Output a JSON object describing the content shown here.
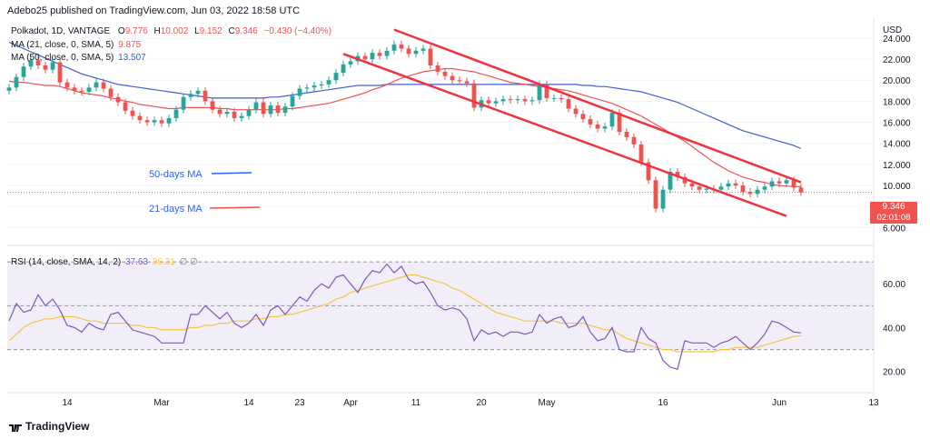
{
  "header": {
    "text": "Adebo25 published on TradingView.com, Jun 03, 2022 18:58 UTC"
  },
  "legend": {
    "symbol": "Polkadot, 1D, VANTAGE",
    "o_label": "O",
    "o": "9.776",
    "h_label": "H",
    "h": "10.002",
    "l_label": "L",
    "l": "9.152",
    "c_label": "C",
    "c": "9.346",
    "change": "−0.430 (−4.40%)",
    "ma21_label": "MA (21, close, 0, SMA, 5)",
    "ma21_value": "9.875",
    "ma50_label": "MA (50, close, 0, SMA, 5)",
    "ma50_value": "13.507",
    "rsi_label": "RSI (14, close, SMA, 14, 2)",
    "rsi_value": "37.63",
    "rsi_ma_value": "36.31",
    "rsi_extra": "∅ ∅"
  },
  "annotations": {
    "ma50": "50-days MA",
    "ma21": "21-days MA"
  },
  "price_tag": {
    "price": "9.346",
    "countdown": "02:01:08"
  },
  "footer": {
    "brand": "TradingView"
  },
  "colors": {
    "up": "#26a69a",
    "down": "#ef5350",
    "ma21": "#ef5350",
    "ma50": "#3c5fd6",
    "rsi": "#7e57c2",
    "rsi_ma": "#f5c542",
    "channel": "#ef3340"
  },
  "chart_data": [
    {
      "type": "candlestick",
      "title": "Polkadot, 1D, VANTAGE",
      "currency": "USD",
      "y_ticks": [
        6,
        8,
        10,
        12,
        14,
        16,
        18,
        20,
        22,
        24
      ],
      "y_tick_labels": [
        "6.000",
        "8.000",
        "10.000",
        "12.000",
        "14.000",
        "16.000",
        "18.000",
        "20.000",
        "22.000",
        "24.000"
      ],
      "ylim": [
        5.0,
        25.2
      ],
      "x_tick_labels": [
        "14",
        "Mar",
        "14",
        "23",
        "Apr",
        "11",
        "20",
        "May",
        "16",
        "Jun",
        "13"
      ],
      "closes": [
        19.3,
        20.3,
        21.3,
        21.9,
        21.4,
        21.0,
        21.7,
        19.8,
        19.3,
        19.0,
        18.9,
        19.3,
        19.8,
        19.2,
        18.4,
        17.9,
        17.1,
        16.6,
        16.2,
        16.0,
        16.2,
        15.9,
        16.4,
        17.2,
        18.4,
        18.7,
        19.0,
        18.0,
        17.2,
        16.8,
        17.0,
        16.4,
        16.6,
        17.2,
        17.9,
        16.8,
        17.6,
        16.9,
        17.5,
        18.5,
        19.2,
        19.3,
        19.5,
        19.6,
        20.0,
        20.7,
        21.5,
        21.8,
        22.3,
        22.0,
        22.6,
        22.3,
        22.8,
        23.4,
        23.0,
        22.5,
        22.8,
        23.0,
        21.4,
        20.8,
        20.4,
        20.0,
        19.9,
        19.7,
        17.4,
        18.1,
        17.8,
        18.0,
        18.2,
        18.1,
        18.2,
        18.0,
        18.1,
        19.6,
        18.3,
        18.3,
        18.2,
        17.3,
        16.8,
        16.3,
        15.8,
        15.4,
        15.6,
        16.9,
        15.1,
        14.6,
        13.9,
        12.2,
        10.5,
        7.8,
        9.6,
        11.3,
        10.8,
        10.2,
        9.9,
        9.6,
        9.7,
        9.6,
        9.9,
        10.2,
        10.0,
        9.4,
        9.2,
        9.6,
        9.9,
        10.4,
        10.2,
        10.5,
        9.8,
        9.346
      ],
      "ma21": [
        19.9,
        19.8,
        19.8,
        19.7,
        19.6,
        19.5,
        19.5,
        19.4,
        19.2,
        19.0,
        18.8,
        18.7,
        18.6,
        18.5,
        18.3,
        18.2,
        18.0,
        17.9,
        17.7,
        17.6,
        17.5,
        17.4,
        17.3,
        17.3,
        17.4,
        17.4,
        17.4,
        17.4,
        17.4,
        17.3,
        17.3,
        17.2,
        17.2,
        17.2,
        17.2,
        17.2,
        17.2,
        17.2,
        17.3,
        17.3,
        17.4,
        17.5,
        17.6,
        17.7,
        17.8,
        18.0,
        18.2,
        18.4,
        18.6,
        18.8,
        19.1,
        19.3,
        19.6,
        19.9,
        20.2,
        20.4,
        20.6,
        20.8,
        20.9,
        21.0,
        21.1,
        21.1,
        21.0,
        20.9,
        20.8,
        20.6,
        20.4,
        20.2,
        20.0,
        19.8,
        19.7,
        19.6,
        19.5,
        19.4,
        19.3,
        19.2,
        19.1,
        19.0,
        18.8,
        18.6,
        18.4,
        18.2,
        18.0,
        17.8,
        17.5,
        17.2,
        16.9,
        16.6,
        16.2,
        15.8,
        15.4,
        15.0,
        14.6,
        14.2,
        13.7,
        13.2,
        12.7,
        12.2,
        11.8,
        11.4,
        11.1,
        10.8,
        10.6,
        10.4,
        10.3,
        10.1,
        10.0,
        9.95,
        9.9,
        9.875
      ],
      "ma50": [
        23.6,
        23.3,
        23.0,
        22.7,
        22.4,
        22.1,
        21.8,
        21.5,
        21.2,
        20.9,
        20.6,
        20.4,
        20.2,
        20.0,
        19.8,
        19.6,
        19.5,
        19.4,
        19.3,
        19.2,
        19.1,
        19.0,
        18.9,
        18.8,
        18.7,
        18.6,
        18.5,
        18.4,
        18.3,
        18.3,
        18.3,
        18.3,
        18.3,
        18.3,
        18.3,
        18.3,
        18.4,
        18.4,
        18.5,
        18.6,
        18.7,
        18.8,
        18.9,
        19.0,
        19.1,
        19.2,
        19.3,
        19.4,
        19.5,
        19.5,
        19.5,
        19.5,
        19.6,
        19.6,
        19.6,
        19.6,
        19.6,
        19.6,
        19.6,
        19.6,
        19.6,
        19.6,
        19.6,
        19.6,
        19.6,
        19.6,
        19.6,
        19.6,
        19.6,
        19.6,
        19.6,
        19.6,
        19.6,
        19.6,
        19.6,
        19.6,
        19.6,
        19.6,
        19.6,
        19.5,
        19.5,
        19.4,
        19.4,
        19.3,
        19.2,
        19.1,
        19.0,
        18.9,
        18.7,
        18.5,
        18.3,
        18.1,
        17.9,
        17.6,
        17.3,
        17.0,
        16.7,
        16.4,
        16.1,
        15.8,
        15.5,
        15.2,
        15.0,
        14.8,
        14.6,
        14.4,
        14.2,
        14.0,
        13.8,
        13.507
      ],
      "channel_upper": {
        "from": [
          53,
          24.8
        ],
        "to": [
          109,
          10.3
        ]
      },
      "channel_lower": {
        "from": [
          46,
          22.5
        ],
        "to": [
          107,
          7.1
        ]
      }
    },
    {
      "type": "line",
      "title": "RSI (14, close, SMA, 14, 2)",
      "y_ticks": [
        20,
        40,
        60
      ],
      "y_tick_labels": [
        "20.00",
        "40.00",
        "60.00"
      ],
      "ylim": [
        12,
        75
      ],
      "band": [
        30,
        70
      ],
      "middle": 50,
      "rsi": [
        43,
        51,
        47,
        48,
        55,
        50,
        53,
        48,
        41,
        40,
        38,
        42,
        40,
        39,
        46,
        47,
        43,
        39,
        38,
        37,
        36,
        33,
        33,
        33,
        33,
        46,
        46,
        50,
        47,
        44,
        47,
        42,
        40,
        42,
        46,
        41,
        48,
        50,
        46,
        50,
        54,
        52,
        57,
        60,
        58,
        63,
        64,
        60,
        56,
        62,
        66,
        65,
        69,
        65,
        68,
        62,
        60,
        61,
        56,
        50,
        48,
        49,
        48,
        44,
        34,
        39,
        37,
        38,
        36,
        38,
        38,
        37,
        38,
        46,
        42,
        44,
        45,
        40,
        41,
        45,
        38,
        34,
        35,
        40,
        30,
        29,
        29,
        40,
        35,
        33,
        25,
        22,
        21,
        34,
        33,
        33,
        33,
        31,
        33,
        34,
        36,
        33,
        30,
        33,
        37,
        43,
        42,
        40,
        38,
        37.63
      ],
      "rsi_ma": [
        34,
        37,
        40,
        42,
        43,
        44,
        44,
        45,
        45,
        45,
        44,
        43,
        43,
        42,
        42,
        42,
        42,
        41,
        41,
        40,
        40,
        39,
        39,
        39,
        39,
        40,
        40,
        41,
        41,
        42,
        42,
        43,
        43,
        43,
        44,
        44,
        45,
        45,
        46,
        46,
        47,
        48,
        49,
        50,
        51,
        53,
        54,
        56,
        57,
        58,
        59,
        60,
        61,
        62,
        63,
        64,
        64,
        63,
        62,
        61,
        60,
        58,
        57,
        55,
        53,
        51,
        49,
        47,
        46,
        45,
        44,
        43,
        43,
        43,
        43,
        43,
        42,
        42,
        42,
        42,
        41,
        40,
        39,
        39,
        37,
        35,
        34,
        33,
        32,
        31,
        30,
        30,
        29,
        29,
        29,
        29,
        29,
        29,
        30,
        30,
        31,
        31,
        31,
        31,
        32,
        33,
        34,
        35,
        36,
        36.31
      ]
    }
  ]
}
